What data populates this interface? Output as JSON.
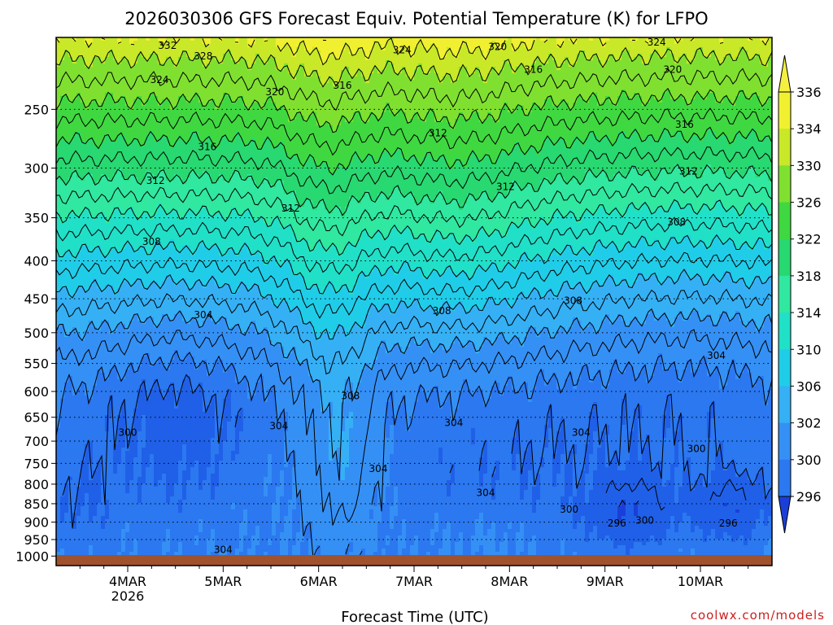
{
  "page": {
    "title": "2026030306 GFS Forecast Equiv. Potential Temperature (K) for LFPO",
    "xlabel": "Forecast Time (UTC)",
    "credit": "coolwx.com/models"
  },
  "chart_data": {
    "type": "heatmap",
    "title": "2026030306 GFS Forecast Equiv. Potential Temperature (K) for LFPO",
    "xlabel": "Forecast Time (UTC)",
    "ylabel": "",
    "y_scale": "log-pressure",
    "y_inverted": true,
    "ylim_hPa": [
      1030,
      200
    ],
    "xlim_hours": [
      0,
      180
    ],
    "x_start_label": "4MAR 2026",
    "xticks": [
      {
        "label": "4MAR",
        "sublabel": "2026",
        "hour": 18
      },
      {
        "label": "5MAR",
        "sublabel": "",
        "hour": 42
      },
      {
        "label": "6MAR",
        "sublabel": "",
        "hour": 66
      },
      {
        "label": "7MAR",
        "sublabel": "",
        "hour": 90
      },
      {
        "label": "8MAR",
        "sublabel": "",
        "hour": 114
      },
      {
        "label": "9MAR",
        "sublabel": "",
        "hour": 138
      },
      {
        "label": "10MAR",
        "sublabel": "",
        "hour": 162
      }
    ],
    "yticks": [
      "250",
      "300",
      "350",
      "400",
      "450",
      "500",
      "550",
      "600",
      "650",
      "700",
      "750",
      "800",
      "850",
      "900",
      "950",
      "1000"
    ],
    "ytick_values": [
      250,
      300,
      350,
      400,
      450,
      500,
      550,
      600,
      650,
      700,
      750,
      800,
      850,
      900,
      950,
      1000
    ],
    "grid": "dotted horizontal at pressure levels",
    "contour_interval_K": 2,
    "colorbar": {
      "labels": [
        "296",
        "300",
        "302",
        "306",
        "310",
        "314",
        "318",
        "322",
        "326",
        "330",
        "334",
        "336"
      ],
      "colors": [
        "#2060e8",
        "#2b78f0",
        "#3590f5",
        "#35b0f5",
        "#20cde8",
        "#20e0c8",
        "#30e8a0",
        "#28d870",
        "#40d840",
        "#80e030",
        "#c8e828",
        "#f0f030"
      ],
      "extend": "both",
      "arrow_low_color": "#1a3fd8",
      "arrow_high_color": "#f5f040"
    },
    "ground_color": "#a0522d",
    "contour_labels": [
      {
        "text": "332",
        "hour": 28,
        "p": 205
      },
      {
        "text": "328",
        "hour": 37,
        "p": 212
      },
      {
        "text": "324",
        "hour": 26,
        "p": 228
      },
      {
        "text": "324",
        "hour": 87,
        "p": 208
      },
      {
        "text": "320",
        "hour": 111,
        "p": 206
      },
      {
        "text": "324",
        "hour": 151,
        "p": 203
      },
      {
        "text": "320",
        "hour": 55,
        "p": 237
      },
      {
        "text": "316",
        "hour": 72,
        "p": 232
      },
      {
        "text": "316",
        "hour": 120,
        "p": 221
      },
      {
        "text": "320",
        "hour": 155,
        "p": 221
      },
      {
        "text": "312",
        "hour": 96,
        "p": 269
      },
      {
        "text": "316",
        "hour": 158,
        "p": 262
      },
      {
        "text": "316",
        "hour": 38,
        "p": 281
      },
      {
        "text": "312",
        "hour": 25,
        "p": 312
      },
      {
        "text": "312",
        "hour": 113,
        "p": 318
      },
      {
        "text": "312",
        "hour": 159,
        "p": 303
      },
      {
        "text": "312",
        "hour": 59,
        "p": 340
      },
      {
        "text": "308",
        "hour": 156,
        "p": 355
      },
      {
        "text": "308",
        "hour": 24,
        "p": 377
      },
      {
        "text": "304",
        "hour": 37,
        "p": 473
      },
      {
        "text": "308",
        "hour": 97,
        "p": 467
      },
      {
        "text": "308",
        "hour": 130,
        "p": 453
      },
      {
        "text": "304",
        "hour": 166,
        "p": 537
      },
      {
        "text": "308",
        "hour": 74,
        "p": 608
      },
      {
        "text": "300",
        "hour": 18,
        "p": 682
      },
      {
        "text": "304",
        "hour": 56,
        "p": 668
      },
      {
        "text": "304",
        "hour": 100,
        "p": 661
      },
      {
        "text": "304",
        "hour": 132,
        "p": 682
      },
      {
        "text": "300",
        "hour": 161,
        "p": 717
      },
      {
        "text": "304",
        "hour": 81,
        "p": 763
      },
      {
        "text": "304",
        "hour": 108,
        "p": 822
      },
      {
        "text": "300",
        "hour": 129,
        "p": 865
      },
      {
        "text": "296",
        "hour": 141,
        "p": 903
      },
      {
        "text": "300",
        "hour": 148,
        "p": 895
      },
      {
        "text": "296",
        "hour": 169,
        "p": 903
      },
      {
        "text": "304",
        "hour": 42,
        "p": 981
      }
    ]
  }
}
